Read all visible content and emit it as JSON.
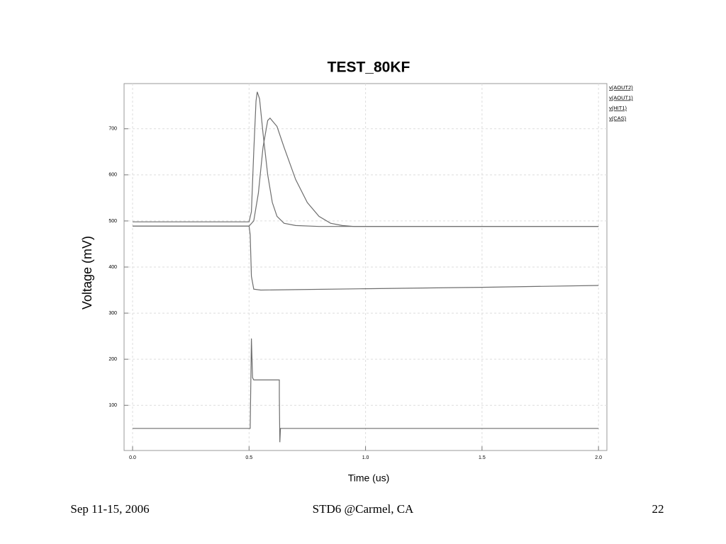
{
  "chart_data": {
    "type": "line",
    "title": "TEST_80KF",
    "x_label": "Time (us)",
    "y_label": "Voltage (mV)",
    "xlim": [
      -0.0365,
      2.036
    ],
    "ylim": [
      2,
      798
    ],
    "xticks": [
      {
        "value": 0,
        "label": "0.0"
      },
      0.5,
      {
        "value": 1,
        "label": "1.0"
      },
      1.5,
      {
        "value": 2,
        "label": "2.0"
      }
    ],
    "yticks": [
      100,
      200,
      300,
      400,
      500,
      600,
      700
    ],
    "grid": true,
    "legend": "upper right",
    "series": [
      {
        "name": "v(AOUT2)",
        "color": "#6e6e6e",
        "x": [
          0,
          0.5,
          0.51,
          0.52,
          0.53,
          0.535,
          0.545,
          0.56,
          0.58,
          0.6,
          0.62,
          0.65,
          0.7,
          0.8,
          1.0,
          2.0
        ],
        "values": [
          498,
          498,
          520,
          650,
          760,
          780,
          765,
          690,
          600,
          540,
          510,
          495,
          490,
          488,
          488,
          488
        ]
      },
      {
        "name": "v(AOUT1)",
        "color": "#6e6e6e",
        "x": [
          0,
          0.5,
          0.52,
          0.54,
          0.56,
          0.58,
          0.59,
          0.62,
          0.65,
          0.7,
          0.75,
          0.8,
          0.85,
          0.9,
          0.95,
          1.0,
          2.0
        ],
        "values": [
          489,
          489,
          500,
          560,
          660,
          718,
          723,
          705,
          660,
          590,
          540,
          510,
          495,
          490,
          488,
          488,
          488
        ]
      },
      {
        "name": "v(HIT1)",
        "color": "#6e6e6e",
        "x": [
          0,
          0.5,
          0.505,
          0.51,
          0.52,
          0.55,
          0.7,
          1.0,
          1.5,
          2.0
        ],
        "values": [
          489,
          489,
          470,
          380,
          352,
          350,
          351,
          353,
          356,
          360
        ]
      },
      {
        "name": "v(CAS)",
        "color": "#6e6e6e",
        "x": [
          0,
          0.5,
          0.505,
          0.51,
          0.515,
          0.52,
          0.63,
          0.63,
          0.632,
          0.635,
          0.65,
          0.9,
          2.0
        ],
        "values": [
          50,
          50,
          50,
          245,
          160,
          155,
          155,
          120,
          20,
          50,
          50,
          50,
          50
        ]
      }
    ]
  },
  "footer": {
    "left": "Sep 11-15, 2006",
    "center": "STD6 @Carmel, CA",
    "right": "22"
  }
}
